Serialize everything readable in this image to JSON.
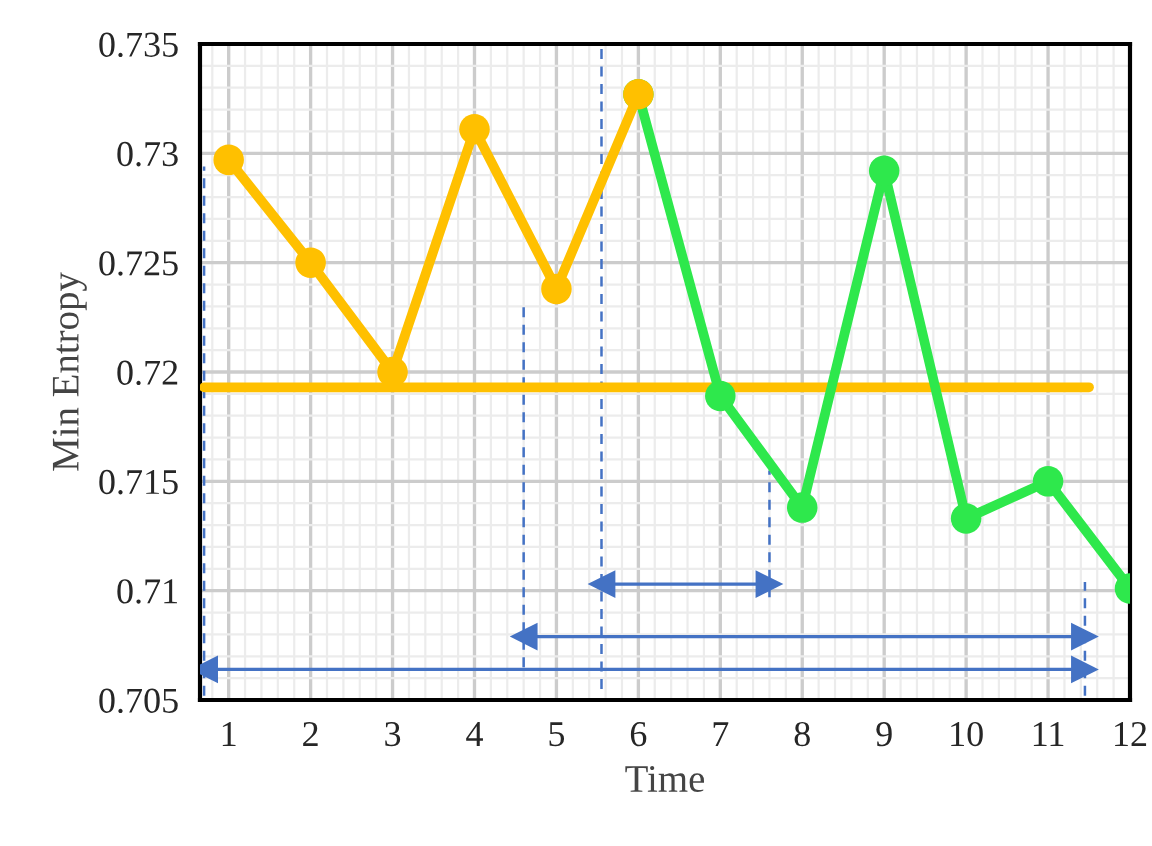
{
  "chart_data": {
    "type": "line",
    "xlabel": "Time",
    "ylabel": "Min Entropy",
    "series": [
      {
        "color": "#ffc000",
        "x": [
          1,
          2,
          3,
          4,
          5,
          6
        ],
        "values": [
          0.7297,
          0.725,
          0.72,
          0.7311,
          0.7238,
          0.7327
        ],
        "marker": "circle",
        "line_style": "solid"
      },
      {
        "color": "#2ee84c",
        "x": [
          6,
          7,
          8,
          9,
          10,
          11,
          12
        ],
        "values": [
          0.7327,
          0.7189,
          0.7138,
          0.7292,
          0.7133,
          0.715,
          0.7101
        ],
        "marker": "circle",
        "line_style": "solid"
      },
      {
        "color": "#ffc000",
        "x": [
          0.7,
          11.5
        ],
        "values": [
          0.7193,
          0.7193
        ],
        "marker": "none",
        "line_style": "solid"
      },
      {
        "color": "#4472c4",
        "x": [
          0.7,
          0.7
        ],
        "values": [
          0.7052,
          0.7294
        ],
        "marker": "none",
        "line_style": "dashed"
      },
      {
        "color": "#4472c4",
        "x": [
          4.6,
          4.6
        ],
        "values": [
          0.7065,
          0.7232
        ],
        "marker": "none",
        "line_style": "dashed"
      },
      {
        "color": "#4472c4",
        "x": [
          5.55,
          5.55
        ],
        "values": [
          0.7055,
          0.735
        ],
        "marker": "none",
        "line_style": "dashed"
      },
      {
        "color": "#4472c4",
        "x": [
          7.6,
          7.6
        ],
        "values": [
          0.7097,
          0.7155
        ],
        "marker": "none",
        "line_style": "dashed"
      },
      {
        "color": "#4472c4",
        "x": [
          11.45,
          11.45
        ],
        "values": [
          0.7052,
          0.7104
        ],
        "marker": "none",
        "line_style": "dashed"
      },
      {
        "color": "#4472c4",
        "x": [
          5.55,
          7.6
        ],
        "values": [
          0.7103,
          0.7103
        ],
        "marker": "triangle",
        "line_style": "solid"
      },
      {
        "color": "#4472c4",
        "x": [
          4.6,
          11.45
        ],
        "values": [
          0.7079,
          0.7079
        ],
        "marker": "triangle",
        "line_style": "solid"
      },
      {
        "color": "#4472c4",
        "x": [
          0.7,
          11.45
        ],
        "values": [
          0.7064,
          0.7064
        ],
        "marker": "triangle",
        "line_style": "solid"
      }
    ],
    "xlim": [
      0.65,
      12
    ],
    "ylim": [
      0.705,
      0.735
    ],
    "xticks": [
      1,
      2,
      3,
      4,
      5,
      6,
      7,
      8,
      9,
      10,
      11,
      12
    ],
    "yticks": [
      0.705,
      0.71,
      0.715,
      0.72,
      0.725,
      0.73,
      0.735
    ],
    "grid": true
  }
}
